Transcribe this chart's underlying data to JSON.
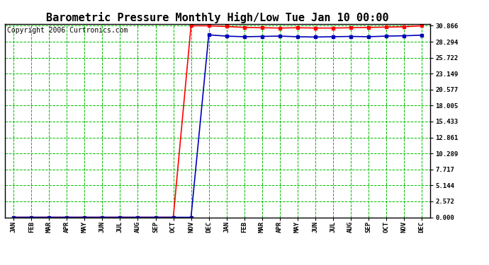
{
  "title": "Barometric Pressure Monthly High/Low Tue Jan 10 00:00",
  "copyright": "Copyright 2006 Curtronics.com",
  "x_labels": [
    "JAN",
    "FEB",
    "MAR",
    "APR",
    "MAY",
    "JUN",
    "JUL",
    "AUG",
    "SEP",
    "OCT",
    "NOV",
    "DEC",
    "JAN",
    "FEB",
    "MAR",
    "APR",
    "MAY",
    "JUN",
    "JUL",
    "AUG",
    "SEP",
    "OCT",
    "NOV",
    "DEC"
  ],
  "yticks": [
    0.0,
    2.572,
    5.144,
    7.717,
    10.289,
    12.861,
    15.433,
    18.005,
    20.577,
    23.149,
    25.722,
    28.294,
    30.866
  ],
  "ymax": 30.866,
  "ymin": 0.0,
  "high_values": [
    0,
    0,
    0,
    0,
    0,
    0,
    0,
    0,
    0,
    0,
    30.866,
    30.866,
    30.75,
    30.6,
    30.55,
    30.5,
    30.55,
    30.5,
    30.5,
    30.55,
    30.6,
    30.65,
    30.7,
    30.866
  ],
  "low_values": [
    0,
    0,
    0,
    0,
    0,
    0,
    0,
    0,
    0,
    0,
    0,
    29.4,
    29.2,
    29.1,
    29.15,
    29.2,
    29.1,
    29.05,
    29.1,
    29.15,
    29.1,
    29.2,
    29.25,
    29.35
  ],
  "high_color": "#ff0000",
  "low_color": "#0000bb",
  "bg_color": "#ffffff",
  "plot_bg": "#ffffff",
  "grid_color": "#00bb00",
  "minor_grid_color": "#aaaaaa",
  "title_fontsize": 11,
  "copyright_fontsize": 7,
  "figwidth": 6.9,
  "figheight": 3.75,
  "dpi": 100
}
